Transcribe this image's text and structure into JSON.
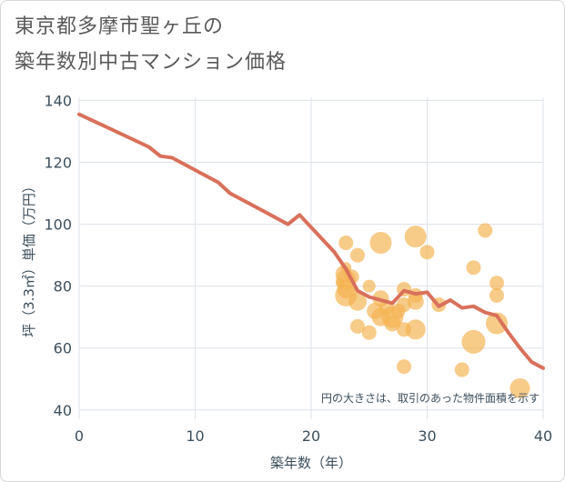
{
  "title": {
    "line1": "東京都多摩市聖ヶ丘の",
    "line2": "築年数別中古マンション価格"
  },
  "chart_data": {
    "type": "scatter",
    "xlabel": "築年数（年）",
    "ylabel": "坪（3.3㎡）単価（万円）",
    "xlim": [
      0,
      40
    ],
    "ylim": [
      37,
      141
    ],
    "x_ticks": [
      0,
      10,
      20,
      30,
      40
    ],
    "y_ticks": [
      40,
      60,
      80,
      100,
      120,
      140
    ],
    "grid": true,
    "note": "円の大きさは、取引のあった物件面積を示す",
    "colors": {
      "bubble": "#f3b24f",
      "line": "#d9705a",
      "grid": "#dde3ea",
      "text": "#3d4f5c"
    },
    "bubbles": [
      {
        "x": 22.5,
        "y": 81,
        "size": 5
      },
      {
        "x": 22.8,
        "y": 84,
        "size": 9
      },
      {
        "x": 23,
        "y": 82,
        "size": 11
      },
      {
        "x": 23,
        "y": 79,
        "size": 10
      },
      {
        "x": 23,
        "y": 77,
        "size": 12
      },
      {
        "x": 23,
        "y": 86,
        "size": 6
      },
      {
        "x": 23,
        "y": 94,
        "size": 8
      },
      {
        "x": 23.5,
        "y": 83,
        "size": 8
      },
      {
        "x": 24,
        "y": 90,
        "size": 8
      },
      {
        "x": 24,
        "y": 67,
        "size": 8
      },
      {
        "x": 24,
        "y": 75,
        "size": 10
      },
      {
        "x": 25,
        "y": 80,
        "size": 7
      },
      {
        "x": 25,
        "y": 65,
        "size": 8
      },
      {
        "x": 25.5,
        "y": 72,
        "size": 9
      },
      {
        "x": 26,
        "y": 94,
        "size": 12
      },
      {
        "x": 26,
        "y": 76,
        "size": 9
      },
      {
        "x": 26,
        "y": 70,
        "size": 10
      },
      {
        "x": 26.5,
        "y": 73,
        "size": 8
      },
      {
        "x": 27,
        "y": 70,
        "size": 12
      },
      {
        "x": 27,
        "y": 68,
        "size": 9
      },
      {
        "x": 27.5,
        "y": 72,
        "size": 8
      },
      {
        "x": 28,
        "y": 79,
        "size": 8
      },
      {
        "x": 28,
        "y": 74,
        "size": 8
      },
      {
        "x": 28,
        "y": 66,
        "size": 8
      },
      {
        "x": 28,
        "y": 54,
        "size": 8
      },
      {
        "x": 29,
        "y": 96,
        "size": 12
      },
      {
        "x": 29,
        "y": 77,
        "size": 8
      },
      {
        "x": 29,
        "y": 75,
        "size": 9
      },
      {
        "x": 29,
        "y": 66,
        "size": 11
      },
      {
        "x": 30,
        "y": 91,
        "size": 8
      },
      {
        "x": 31,
        "y": 74,
        "size": 8
      },
      {
        "x": 33,
        "y": 53,
        "size": 8
      },
      {
        "x": 34,
        "y": 86,
        "size": 8
      },
      {
        "x": 34,
        "y": 62,
        "size": 13
      },
      {
        "x": 35,
        "y": 98,
        "size": 8
      },
      {
        "x": 36,
        "y": 81,
        "size": 8
      },
      {
        "x": 36,
        "y": 77,
        "size": 8
      },
      {
        "x": 36,
        "y": 68,
        "size": 12
      },
      {
        "x": 38,
        "y": 47,
        "size": 11
      }
    ],
    "trend_line": {
      "x": [
        0,
        2,
        4,
        6,
        7,
        8,
        10,
        12,
        13,
        16,
        18,
        19,
        20,
        21,
        22,
        23,
        24,
        25,
        27,
        28,
        29,
        30,
        31,
        32,
        33,
        34,
        35,
        36,
        37,
        38,
        39,
        40
      ],
      "y": [
        135.5,
        132,
        128.5,
        125,
        122,
        121.5,
        117.5,
        113.5,
        110,
        104,
        100,
        103,
        99,
        95,
        91,
        85.5,
        78.5,
        76.5,
        74.5,
        78.5,
        77.5,
        78,
        73.5,
        75.5,
        73,
        73.5,
        71.5,
        70.5,
        65,
        60,
        55.5,
        53.5
      ]
    }
  }
}
